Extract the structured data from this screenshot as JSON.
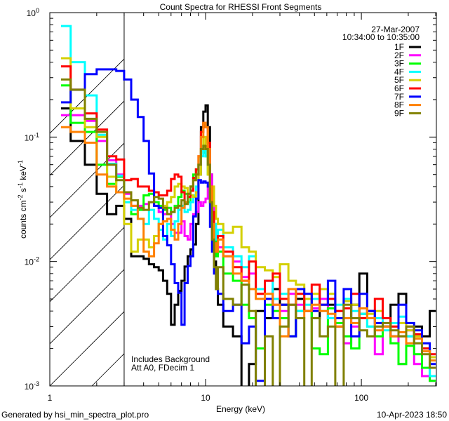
{
  "chart_data": {
    "type": "line",
    "style": "step-histogram",
    "title": "Count Spectra for RHESSI Front Segments",
    "xlabel": "Energy (keV)",
    "ylabel_parts": [
      "counts cm",
      "-2",
      " s",
      "-1",
      " keV",
      "-1"
    ],
    "xscale": "log",
    "yscale": "log",
    "xlim": [
      1,
      303
    ],
    "ylim": [
      0.001,
      1
    ],
    "x_ticks": [
      {
        "value": 1,
        "label": "1"
      },
      {
        "value": 10,
        "label": "10"
      },
      {
        "value": 100,
        "label": "100"
      }
    ],
    "y_ticks": [
      {
        "value": 1,
        "base": "10",
        "exp": "0"
      },
      {
        "value": 0.1,
        "base": "10",
        "exp": "-1"
      },
      {
        "value": 0.01,
        "base": "10",
        "exp": "-2"
      },
      {
        "value": 0.001,
        "base": "10",
        "exp": "-3"
      }
    ],
    "hatched_region_below_keV": 3.0,
    "legend": {
      "placement": "top-right",
      "date": "27-Mar-2007",
      "time_range": "10:34:00 to 10:35:00"
    },
    "annotations": [
      "Includes Background",
      "Att A0, FDecim 1"
    ],
    "energy_edges": [
      1.18,
      1.36,
      1.68,
      2.0,
      2.33,
      2.67,
      3.0,
      3.33,
      3.67,
      4.0,
      4.33,
      4.67,
      5.0,
      5.33,
      5.67,
      6.0,
      6.33,
      6.67,
      7.0,
      7.33,
      7.67,
      8.0,
      8.33,
      8.67,
      9.0,
      9.33,
      9.67,
      10.0,
      10.33,
      10.67,
      11.0,
      11.33,
      11.67,
      12.0,
      13,
      15,
      17,
      19,
      21,
      24,
      27,
      30,
      34,
      38,
      43,
      48,
      54,
      61,
      68,
      77,
      86,
      97,
      109,
      122,
      137,
      154,
      173,
      194,
      218,
      245,
      275,
      300
    ],
    "series": [
      {
        "name": "1F",
        "color": "#000000",
        "values": [
          0.17,
          0.093,
          0.06,
          0.035,
          0.024,
          0.028,
          0.022,
          0.011,
          0.011,
          0.0105,
          0.0095,
          0.009,
          0.0085,
          0.007,
          0.0055,
          0.0031,
          0.0045,
          0.0058,
          0.007,
          0.0091,
          0.011,
          0.0125,
          0.0137,
          0.02,
          0.05,
          0.12,
          0.16,
          0.18,
          0.12,
          0.05,
          0.02,
          0.01,
          0.006,
          0.0045,
          0.003,
          0.0025,
          0.0009,
          0.0015,
          0.004,
          0.0035,
          0.006,
          0.0045,
          0.0025,
          0.005,
          0.004,
          0.0035,
          0.006,
          0.0045,
          0.003,
          0.0035,
          0.0045,
          0.008,
          0.004,
          0.0035,
          0.003,
          0.0045,
          0.0055,
          0.0025,
          0.003,
          0.0025,
          0.004
        ]
      },
      {
        "name": "2F",
        "color": "#ff00ff",
        "values": [
          0.15,
          0.15,
          0.135,
          0.093,
          0.065,
          0.05,
          0.035,
          0.028,
          0.028,
          0.029,
          0.03,
          0.028,
          0.025,
          0.024,
          0.024,
          0.02,
          0.017,
          0.017,
          0.021,
          0.016,
          0.015,
          0.02,
          0.024,
          0.025,
          0.03,
          0.028,
          0.03,
          0.032,
          0.04,
          0.05,
          0.03,
          0.02,
          0.014,
          0.013,
          0.011,
          0.01,
          0.0075,
          0.008,
          0.006,
          0.007,
          0.0045,
          0.004,
          0.0055,
          0.0045,
          0.004,
          0.0042,
          0.005,
          0.0035,
          0.004,
          0.0022,
          0.003,
          0.0038,
          0.004,
          0.0018,
          0.003,
          0.0025,
          0.0015,
          0.0028,
          0.0015,
          0.0012,
          0.0011
        ]
      },
      {
        "name": "3F",
        "color": "#00ff00",
        "values": [
          0.26,
          0.13,
          0.11,
          0.06,
          0.042,
          0.048,
          0.03,
          0.024,
          0.026,
          0.034,
          0.035,
          0.03,
          0.028,
          0.026,
          0.027,
          0.025,
          0.028,
          0.033,
          0.037,
          0.035,
          0.03,
          0.04,
          0.05,
          0.055,
          0.06,
          0.08,
          0.075,
          0.07,
          0.05,
          0.03,
          0.02,
          0.015,
          0.011,
          0.012,
          0.008,
          0.007,
          0.0045,
          0.0035,
          0.002,
          0.0045,
          0.004,
          0.0035,
          0.0025,
          0.004,
          0.005,
          0.002,
          0.0018,
          0.0042,
          0.0032,
          0.0025,
          0.002,
          0.0038,
          0.003,
          0.0025,
          0.003,
          0.0022,
          0.0015,
          0.0021,
          0.0018,
          0.0014,
          0.0011
        ]
      },
      {
        "name": "4F",
        "color": "#00ffff",
        "values": [
          0.78,
          0.4,
          0.216,
          0.104,
          0.061,
          0.049,
          0.03,
          0.026,
          0.022,
          0.02,
          0.026,
          0.022,
          0.018,
          0.015,
          0.02,
          0.016,
          0.021,
          0.026,
          0.028,
          0.025,
          0.026,
          0.03,
          0.034,
          0.04,
          0.06,
          0.07,
          0.085,
          0.07,
          0.06,
          0.03,
          0.022,
          0.02,
          0.015,
          0.018,
          0.013,
          0.011,
          0.009,
          0.011,
          0.006,
          0.007,
          0.005,
          0.0055,
          0.006,
          0.004,
          0.0045,
          0.005,
          0.004,
          0.0035,
          0.0045,
          0.005,
          0.004,
          0.0038,
          0.003,
          0.0035,
          0.0028,
          0.0032,
          0.0036,
          0.0025,
          0.0022,
          0.002,
          0.0012
        ]
      },
      {
        "name": "5F",
        "color": "#d4d000",
        "values": [
          0.43,
          0.17,
          0.12,
          0.1,
          0.048,
          0.036,
          0.02,
          0.012,
          0.015,
          0.015,
          0.013,
          0.016,
          0.02,
          0.028,
          0.03,
          0.033,
          0.04,
          0.042,
          0.04,
          0.039,
          0.035,
          0.034,
          0.033,
          0.036,
          0.05,
          0.08,
          0.1,
          0.085,
          0.05,
          0.035,
          0.04,
          0.028,
          0.022,
          0.02,
          0.017,
          0.019,
          0.013,
          0.012,
          0.009,
          0.0085,
          0.0075,
          0.0095,
          0.007,
          0.0065,
          0.005,
          0.0055,
          0.006,
          0.0055,
          0.004,
          0.0048,
          0.0045,
          0.0042,
          0.0038,
          0.004,
          0.0035,
          0.003,
          0.0032,
          0.0028,
          0.0025,
          0.002,
          0.0017
        ]
      },
      {
        "name": "6F",
        "color": "#ff0000",
        "values": [
          0.37,
          0.24,
          0.155,
          0.115,
          0.07,
          0.066,
          0.045,
          0.046,
          0.04,
          0.04,
          0.037,
          0.036,
          0.034,
          0.034,
          0.037,
          0.046,
          0.05,
          0.048,
          0.036,
          0.03,
          0.033,
          0.037,
          0.047,
          0.055,
          0.07,
          0.11,
          0.13,
          0.12,
          0.09,
          0.04,
          0.025,
          0.014,
          0.012,
          0.016,
          0.012,
          0.009,
          0.007,
          0.01,
          0.0055,
          0.007,
          0.008,
          0.005,
          0.0045,
          0.0055,
          0.004,
          0.0065,
          0.0045,
          0.005,
          0.004,
          0.0042,
          0.0055,
          0.0035,
          0.004,
          0.005,
          0.0035,
          0.003,
          0.0025,
          0.003,
          0.0026,
          0.002,
          0.0018
        ]
      },
      {
        "name": "7F",
        "color": "#0000ff",
        "values": [
          0.19,
          0.24,
          0.32,
          0.35,
          0.35,
          0.34,
          0.29,
          0.2,
          0.145,
          0.093,
          0.051,
          0.028,
          0.027,
          0.016,
          0.0135,
          0.0095,
          0.0067,
          0.0056,
          0.0031,
          0.0067,
          0.0092,
          0.011,
          0.023,
          0.032,
          0.045,
          0.043,
          0.044,
          0.043,
          0.04,
          0.019,
          0.012,
          0.008,
          0.006,
          0.0055,
          0.004,
          0.0045,
          0.0022,
          0.003,
          0.0011,
          0.005,
          0.0035,
          0.0045,
          0.0025,
          0.006,
          0.0055,
          0.004,
          0.0045,
          0.007,
          0.0035,
          0.006,
          0.0025,
          0.0055,
          0.004,
          0.0032,
          0.003,
          0.0025,
          0.0045,
          0.0032,
          0.0028,
          0.0022,
          0.0015
        ]
      },
      {
        "name": "8F",
        "color": "#ff8000",
        "values": [
          0.12,
          0.11,
          0.09,
          0.05,
          0.04,
          0.036,
          0.032,
          0.028,
          0.022,
          0.012,
          0.011,
          0.014,
          0.02,
          0.021,
          0.022,
          0.018,
          0.015,
          0.02,
          0.027,
          0.03,
          0.035,
          0.04,
          0.045,
          0.05,
          0.07,
          0.1,
          0.13,
          0.12,
          0.08,
          0.04,
          0.02,
          0.014,
          0.012,
          0.015,
          0.011,
          0.008,
          0.007,
          0.006,
          0.005,
          0.0055,
          0.0045,
          0.0025,
          0.006,
          0.0035,
          0.004,
          0.0045,
          0.004,
          0.0038,
          0.003,
          0.0035,
          0.0032,
          0.0042,
          0.0035,
          0.0028,
          0.003,
          0.0025,
          0.0027,
          0.0022,
          0.0024,
          0.0019,
          0.0016
        ]
      },
      {
        "name": "9F",
        "color": "#808000",
        "values": [
          0.29,
          0.24,
          0.14,
          0.11,
          0.06,
          0.045,
          0.036,
          0.031,
          0.027,
          0.026,
          0.03,
          0.033,
          0.032,
          0.027,
          0.024,
          0.025,
          0.027,
          0.028,
          0.031,
          0.029,
          0.035,
          0.04,
          0.045,
          0.05,
          0.06,
          0.08,
          0.085,
          0.08,
          0.06,
          0.03,
          0.015,
          0.009,
          0.006,
          0.009,
          0.005,
          0.0045,
          0.0065,
          0.004,
          0.0008,
          0.0025,
          0.0009,
          0.003,
          0.0045,
          0.0035,
          0.0008,
          0.0035,
          0.0025,
          0.003,
          0.0008,
          0.0045,
          0.0035,
          0.0028,
          0.0025,
          0.003,
          0.0032,
          0.0028,
          0.0025,
          0.003,
          0.0022,
          0.0018,
          0.0014
        ]
      }
    ]
  },
  "footer": {
    "generated_by": "Generated by hsi_min_spectra_plot.pro",
    "timestamp": "10-Apr-2023 18:50"
  }
}
